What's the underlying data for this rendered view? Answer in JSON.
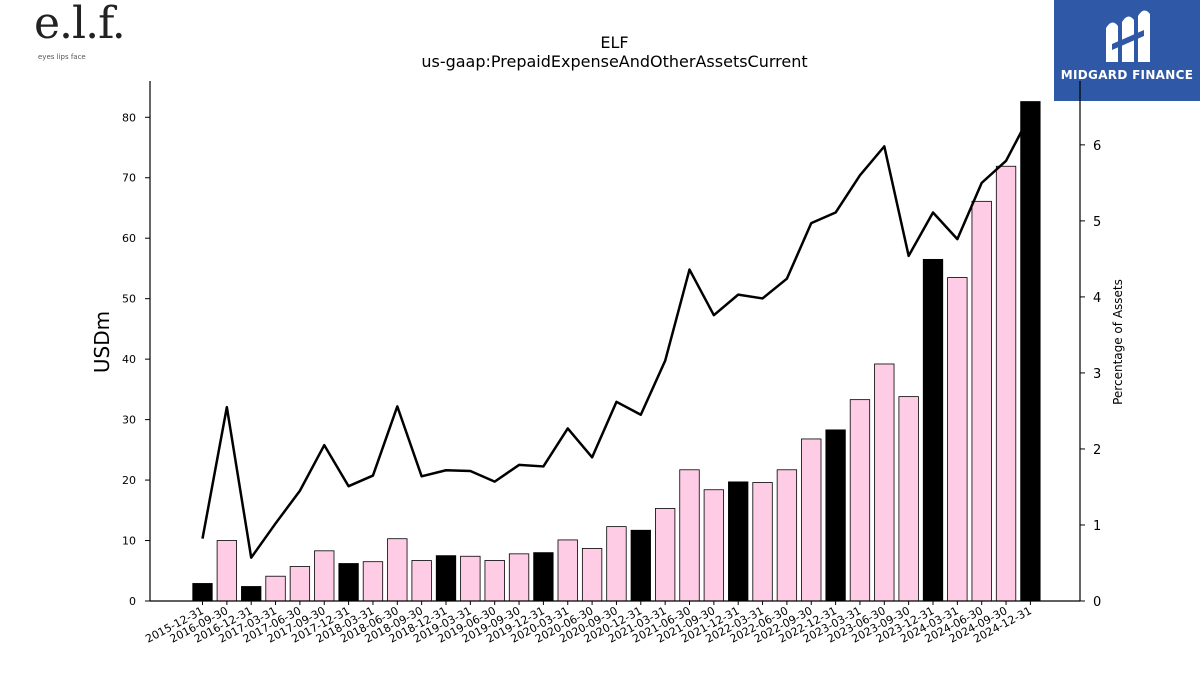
{
  "brand": {
    "left_logo_text": "e.l.f.",
    "left_logo_tagline": "eyes lips face",
    "right_logo_text": "MIDGARD FINANCE"
  },
  "colors": {
    "bar_highlight": "#000000",
    "bar_normal": "#ffcce6",
    "line": "#000000",
    "right_logo_bg": "#2f59a6"
  },
  "chart_data": {
    "type": "bar",
    "title": "ELF",
    "subtitle": "us-gaap:PrepaidExpenseAndOtherAssetsCurrent",
    "ylabel": "USDm",
    "y2label": "Percentage of Assets",
    "ylim": [
      0,
      86
    ],
    "y2lim": [
      0,
      6.84
    ],
    "yticks": [
      0,
      10,
      20,
      30,
      40,
      50,
      60,
      70,
      80
    ],
    "y2ticks": [
      0,
      1,
      2,
      3,
      4,
      5,
      6
    ],
    "categories": [
      "2015-12-31",
      "2016-09-30",
      "2016-12-31",
      "2017-03-31",
      "2017-06-30",
      "2017-09-30",
      "2017-12-31",
      "2018-03-31",
      "2018-06-30",
      "2018-09-30",
      "2018-12-31",
      "2019-03-31",
      "2019-06-30",
      "2019-09-30",
      "2019-12-31",
      "2020-03-31",
      "2020-06-30",
      "2020-09-30",
      "2020-12-31",
      "2021-03-31",
      "2021-06-30",
      "2021-09-30",
      "2021-12-31",
      "2022-03-31",
      "2022-06-30",
      "2022-09-30",
      "2022-12-31",
      "2023-03-31",
      "2023-06-30",
      "2023-09-30",
      "2023-12-31",
      "2024-03-31",
      "2024-06-30",
      "2024-09-30",
      "2024-12-31"
    ],
    "series": [
      {
        "type": "bar",
        "values": [
          2.9,
          10.0,
          2.4,
          4.1,
          5.7,
          8.3,
          6.2,
          6.5,
          10.3,
          6.7,
          7.5,
          7.4,
          6.7,
          7.8,
          8.0,
          10.1,
          8.7,
          12.3,
          11.7,
          15.3,
          21.7,
          18.4,
          19.7,
          19.6,
          21.7,
          26.8,
          28.3,
          33.3,
          39.2,
          33.8,
          56.5,
          53.5,
          66.1,
          71.9,
          82.6
        ],
        "highlight": [
          true,
          false,
          true,
          false,
          false,
          false,
          true,
          false,
          false,
          false,
          true,
          false,
          false,
          false,
          true,
          false,
          false,
          false,
          true,
          false,
          false,
          false,
          true,
          false,
          false,
          false,
          true,
          false,
          false,
          false,
          true,
          false,
          false,
          false,
          true
        ]
      },
      {
        "type": "line",
        "axis": "right",
        "values": [
          0.82,
          2.55,
          0.57,
          1.02,
          1.45,
          2.05,
          1.51,
          1.65,
          2.56,
          1.64,
          1.72,
          1.71,
          1.57,
          1.79,
          1.77,
          2.27,
          1.89,
          2.62,
          2.45,
          3.16,
          4.36,
          3.76,
          4.03,
          3.98,
          4.24,
          4.97,
          5.11,
          5.6,
          5.98,
          4.54,
          5.11,
          4.76,
          5.5,
          5.79,
          6.4
        ]
      }
    ],
    "grid": false
  }
}
